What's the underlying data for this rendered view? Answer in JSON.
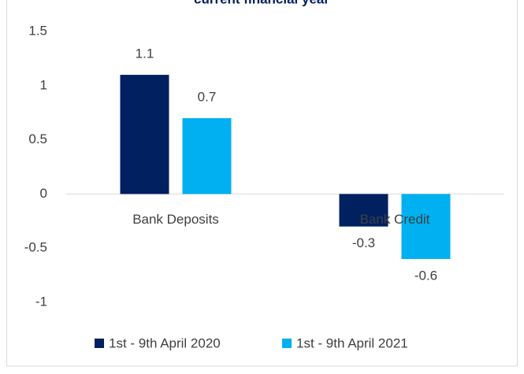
{
  "chart_data": {
    "type": "bar",
    "title": "current financial year",
    "categories": [
      "Bank Deposits",
      "Bank Credit"
    ],
    "series": [
      {
        "name": "1st - 9th April 2020",
        "color": "#002060",
        "values": [
          1.1,
          -0.3
        ]
      },
      {
        "name": "1st - 9th April 2021",
        "color": "#00b0f0",
        "values": [
          0.7,
          -0.6
        ]
      }
    ],
    "ylim": [
      -1,
      1.5
    ],
    "yticks": [
      1.5,
      1,
      0.5,
      0,
      -0.5,
      -1
    ],
    "grid": false,
    "legend": "bottom"
  }
}
